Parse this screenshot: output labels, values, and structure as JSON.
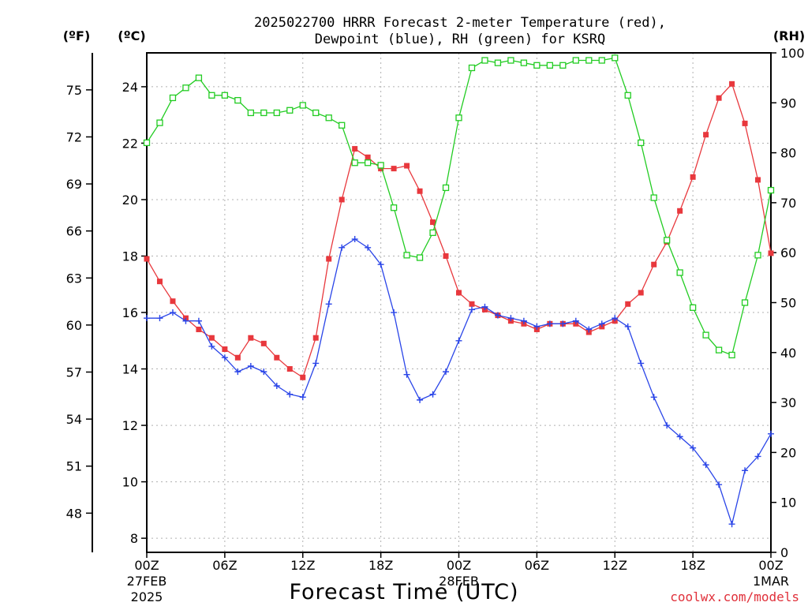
{
  "title_line1": "2025022700 HRRR Forecast 2-meter Temperature (red),",
  "title_line2": "Dewpoint (blue), RH (green) for KSRQ",
  "credit": "coolwx.com/models",
  "chart_data": {
    "type": "line",
    "xlabel": "Forecast Time (UTC)",
    "x_hours": [
      0,
      1,
      2,
      3,
      4,
      5,
      6,
      7,
      8,
      9,
      10,
      11,
      12,
      13,
      14,
      15,
      16,
      17,
      18,
      19,
      20,
      21,
      22,
      23,
      24,
      25,
      26,
      27,
      28,
      29,
      30,
      31,
      32,
      33,
      34,
      35,
      36,
      37,
      38,
      39,
      40,
      41,
      42,
      43,
      44,
      45,
      46,
      47,
      48
    ],
    "x_ticks": [
      {
        "hour": 0,
        "label": "00Z",
        "sub1": "27FEB",
        "sub2": "2025"
      },
      {
        "hour": 6,
        "label": "06Z",
        "sub1": "",
        "sub2": ""
      },
      {
        "hour": 12,
        "label": "12Z",
        "sub1": "",
        "sub2": ""
      },
      {
        "hour": 18,
        "label": "18Z",
        "sub1": "",
        "sub2": ""
      },
      {
        "hour": 24,
        "label": "00Z",
        "sub1": "28FEB",
        "sub2": ""
      },
      {
        "hour": 30,
        "label": "06Z",
        "sub1": "",
        "sub2": ""
      },
      {
        "hour": 36,
        "label": "12Z",
        "sub1": "",
        "sub2": ""
      },
      {
        "hour": 42,
        "label": "18Z",
        "sub1": "",
        "sub2": ""
      },
      {
        "hour": 48,
        "label": "00Z",
        "sub1": "1MAR",
        "sub2": ""
      }
    ],
    "xlim": [
      0,
      48
    ],
    "ylim_c": [
      7.5,
      25.2
    ],
    "yticks_c": [
      8,
      10,
      12,
      14,
      16,
      18,
      20,
      22,
      24
    ],
    "ylim_rh": [
      0,
      100
    ],
    "yticks_rh": [
      0,
      10,
      20,
      30,
      40,
      50,
      60,
      70,
      80,
      90,
      100
    ],
    "yticks_f": [
      48,
      51,
      54,
      57,
      60,
      63,
      66,
      69,
      72,
      75
    ],
    "unit_f": "(ºF)",
    "unit_c": "(ºC)",
    "unit_rh": "(RH)",
    "grid": true,
    "series": [
      {
        "name": "Temperature",
        "axis": "c",
        "color": "#e8383d",
        "marker": "filled-square",
        "values": [
          17.9,
          17.1,
          16.4,
          15.8,
          15.4,
          15.1,
          14.7,
          14.4,
          15.1,
          14.9,
          14.4,
          14.0,
          13.7,
          15.1,
          17.9,
          20.0,
          21.8,
          21.5,
          21.1,
          21.1,
          21.2,
          20.3,
          19.2,
          18.0,
          16.7,
          16.3,
          16.1,
          15.9,
          15.7,
          15.6,
          15.4,
          15.6,
          15.6,
          15.6,
          15.3,
          15.5,
          15.7,
          16.3,
          16.7,
          17.7,
          18.5,
          19.6,
          20.8,
          22.3,
          23.6,
          24.1,
          22.7,
          20.7,
          18.1
        ]
      },
      {
        "name": "Dewpoint",
        "axis": "c",
        "color": "#2a45e8",
        "marker": "plus",
        "values": [
          15.8,
          15.8,
          16.0,
          15.7,
          15.7,
          14.8,
          14.4,
          13.9,
          14.1,
          13.9,
          13.4,
          13.1,
          13.0,
          14.2,
          16.3,
          18.3,
          18.6,
          18.3,
          17.7,
          16.0,
          13.8,
          12.9,
          13.1,
          13.9,
          15.0,
          16.1,
          16.2,
          15.9,
          15.8,
          15.7,
          15.5,
          15.6,
          15.6,
          15.7,
          15.4,
          15.6,
          15.8,
          15.5,
          14.2,
          13.0,
          12.0,
          11.6,
          11.2,
          10.6,
          9.9,
          8.5,
          10.4,
          10.9,
          11.7
        ]
      },
      {
        "name": "RH",
        "axis": "rh",
        "color": "#22cc22",
        "marker": "open-square",
        "values": [
          82,
          86,
          91,
          93,
          95,
          91.5,
          91.5,
          90.5,
          88,
          88,
          88,
          88.5,
          89.5,
          88,
          87,
          85.5,
          78,
          78,
          77.5,
          69,
          59.5,
          59,
          64,
          73,
          87,
          97,
          98.5,
          98,
          98.5,
          98,
          97.5,
          97.5,
          97.5,
          98.5,
          98.5,
          98.5,
          99,
          91.5,
          82,
          71,
          62.5,
          56,
          49,
          43.5,
          40.5,
          39.5,
          50,
          59.5,
          72.5
        ]
      }
    ]
  }
}
